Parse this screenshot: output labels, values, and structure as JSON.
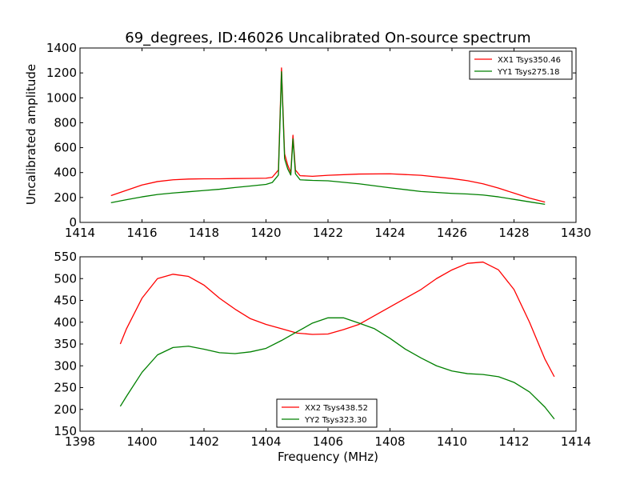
{
  "chart_data": [
    {
      "type": "line",
      "title": "69_degrees, ID:46026 Uncalibrated On-source spectrum",
      "xlabel": "",
      "ylabel": "Uncalibrated amplitude",
      "xlim": [
        1414,
        1430
      ],
      "ylim": [
        0,
        1400
      ],
      "xticks": [
        1414,
        1416,
        1418,
        1420,
        1422,
        1424,
        1426,
        1428,
        1430
      ],
      "yticks": [
        0,
        200,
        400,
        600,
        800,
        1000,
        1200,
        1400
      ],
      "grid": false,
      "legend": "top-right",
      "series": [
        {
          "name": "XX1 Tsys350.46",
          "color": "#ff0000",
          "x": [
            1415.0,
            1415.5,
            1416.0,
            1416.5,
            1417.0,
            1417.5,
            1418.0,
            1418.5,
            1419.0,
            1419.5,
            1420.0,
            1420.2,
            1420.4,
            1420.5,
            1420.6,
            1420.7,
            1420.8,
            1420.87,
            1420.95,
            1421.1,
            1421.5,
            1422.0,
            1423.0,
            1424.0,
            1425.0,
            1426.0,
            1426.5,
            1427.0,
            1427.5,
            1428.0,
            1428.5,
            1429.0
          ],
          "y": [
            215,
            258,
            300,
            328,
            342,
            348,
            350,
            350,
            352,
            353,
            355,
            362,
            420,
            1240,
            550,
            460,
            400,
            700,
            420,
            375,
            370,
            378,
            388,
            390,
            378,
            352,
            335,
            310,
            275,
            235,
            195,
            163
          ]
        },
        {
          "name": "YY1 Tsys275.18",
          "color": "#008000",
          "x": [
            1415.0,
            1415.5,
            1416.0,
            1416.5,
            1417.0,
            1417.5,
            1418.0,
            1418.5,
            1419.0,
            1419.5,
            1420.0,
            1420.2,
            1420.4,
            1420.5,
            1420.6,
            1420.7,
            1420.8,
            1420.87,
            1420.95,
            1421.1,
            1421.5,
            1422.0,
            1423.0,
            1424.0,
            1425.0,
            1426.0,
            1426.5,
            1427.0,
            1427.5,
            1428.0,
            1428.5,
            1429.0
          ],
          "y": [
            158,
            182,
            205,
            224,
            236,
            246,
            256,
            266,
            280,
            292,
            305,
            320,
            380,
            1210,
            510,
            430,
            380,
            670,
            390,
            342,
            337,
            334,
            310,
            278,
            248,
            233,
            228,
            220,
            205,
            185,
            165,
            145
          ]
        }
      ]
    },
    {
      "type": "line",
      "title": "",
      "xlabel": "Frequency (MHz)",
      "ylabel": "",
      "xlim": [
        1398,
        1414
      ],
      "ylim": [
        150,
        550
      ],
      "xticks": [
        1398,
        1400,
        1402,
        1404,
        1406,
        1408,
        1410,
        1412,
        1414
      ],
      "yticks": [
        150,
        200,
        250,
        300,
        350,
        400,
        450,
        500,
        550
      ],
      "grid": false,
      "legend": "bottom-center",
      "series": [
        {
          "name": "XX2 Tsys438.52",
          "color": "#ff0000",
          "x": [
            1399.3,
            1399.5,
            1400.0,
            1400.5,
            1401.0,
            1401.5,
            1402.0,
            1402.5,
            1403.0,
            1403.5,
            1404.0,
            1404.5,
            1405.0,
            1405.5,
            1406.0,
            1406.5,
            1407.0,
            1407.5,
            1408.0,
            1408.5,
            1409.0,
            1409.5,
            1410.0,
            1410.5,
            1411.0,
            1411.5,
            1412.0,
            1412.5,
            1413.0,
            1413.3
          ],
          "y": [
            350,
            385,
            455,
            500,
            510,
            505,
            485,
            455,
            430,
            408,
            395,
            385,
            375,
            372,
            373,
            383,
            395,
            415,
            435,
            455,
            475,
            500,
            520,
            535,
            538,
            520,
            475,
            400,
            315,
            275
          ]
        },
        {
          "name": "YY2 Tsys323.30",
          "color": "#008000",
          "x": [
            1399.3,
            1399.5,
            1400.0,
            1400.5,
            1401.0,
            1401.5,
            1402.0,
            1402.5,
            1403.0,
            1403.5,
            1404.0,
            1404.5,
            1405.0,
            1405.5,
            1406.0,
            1406.5,
            1407.0,
            1407.5,
            1408.0,
            1408.5,
            1409.0,
            1409.5,
            1410.0,
            1410.5,
            1411.0,
            1411.5,
            1412.0,
            1412.5,
            1413.0,
            1413.3
          ],
          "y": [
            207,
            230,
            285,
            325,
            342,
            345,
            338,
            330,
            328,
            332,
            340,
            358,
            378,
            398,
            410,
            410,
            398,
            385,
            363,
            338,
            318,
            300,
            288,
            282,
            280,
            275,
            262,
            240,
            205,
            178
          ]
        }
      ]
    }
  ]
}
